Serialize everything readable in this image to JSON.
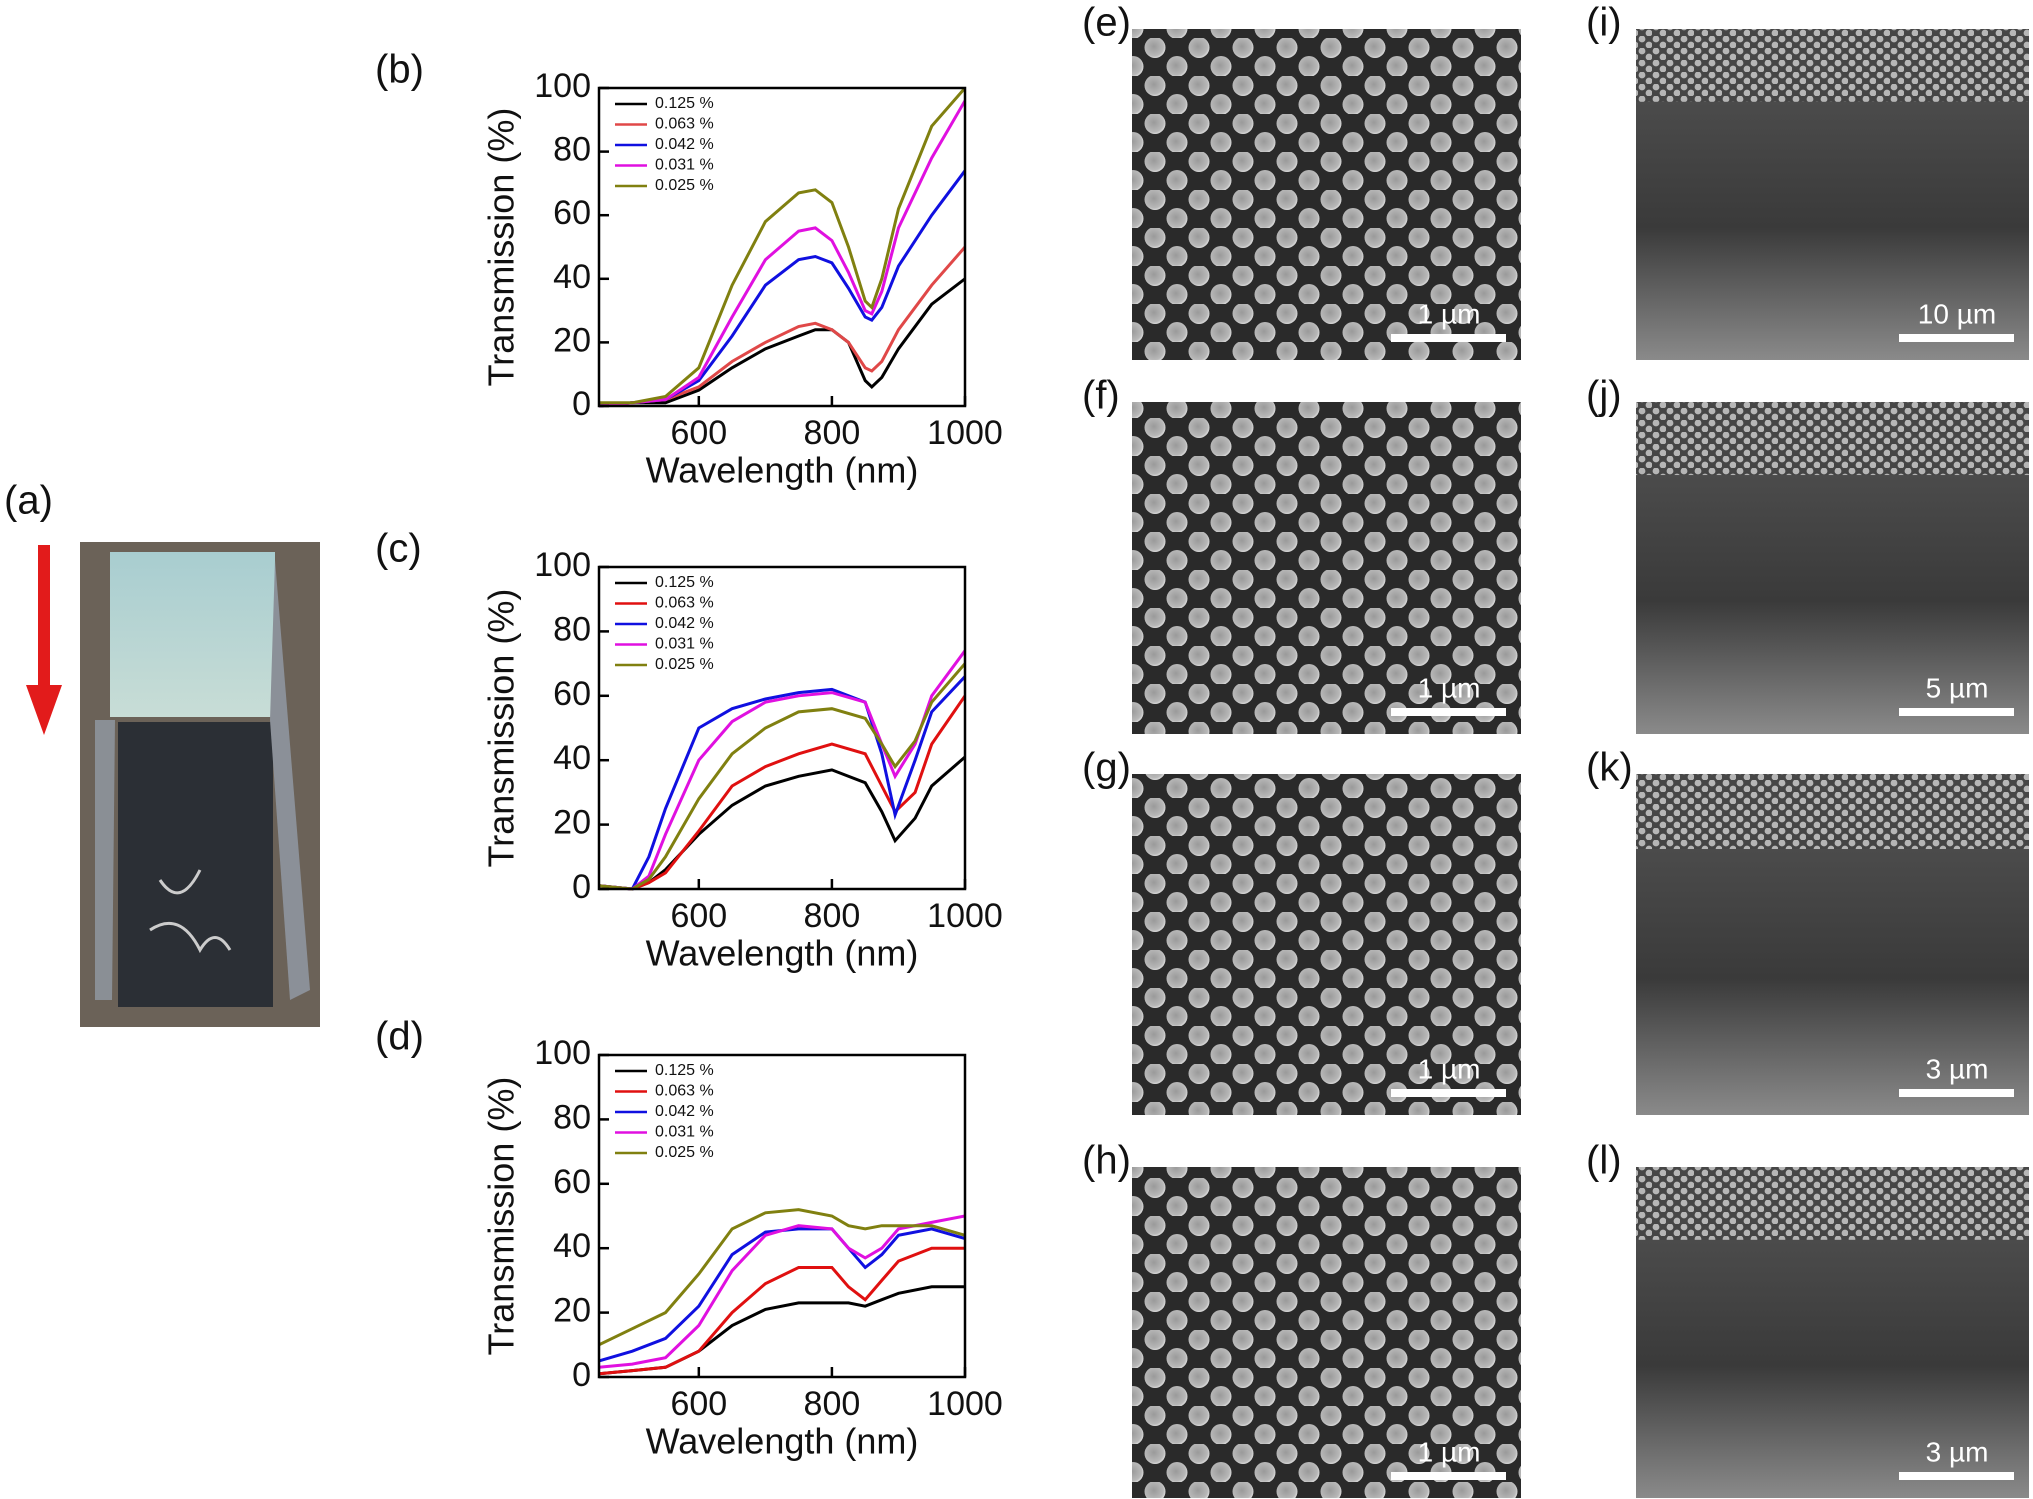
{
  "photo": {
    "label": "(a)"
  },
  "sem_images": [
    {
      "label": "(e)",
      "scale_bar": "1 µm"
    },
    {
      "label": "(f)",
      "scale_bar": "1 µm"
    },
    {
      "label": "(g)",
      "scale_bar": "1 µm"
    },
    {
      "label": "(h)",
      "scale_bar": "1 µm"
    },
    {
      "label": "(i)",
      "scale_bar": "10 µm"
    },
    {
      "label": "(j)",
      "scale_bar": "5 µm"
    },
    {
      "label": "(k)",
      "scale_bar": "3 µm"
    },
    {
      "label": "(l)",
      "scale_bar": "3 µm"
    }
  ],
  "chart_data": [
    {
      "type": "line",
      "label": "(b)",
      "xlabel": "Wavelength (nm)",
      "ylabel": "Transmission (%)",
      "xlim": [
        450,
        1000
      ],
      "ylim": [
        0,
        100
      ],
      "xticks": [
        600,
        800,
        1000
      ],
      "yticks": [
        0,
        20,
        40,
        60,
        80,
        100
      ],
      "legend": "upper left",
      "x": [
        450,
        500,
        550,
        600,
        650,
        700,
        750,
        775,
        800,
        825,
        850,
        860,
        875,
        900,
        950,
        1000
      ],
      "series": [
        {
          "name": "0.125 %",
          "color": "#000000",
          "values": [
            0,
            1,
            1,
            5,
            12,
            18,
            22,
            24,
            24,
            20,
            8,
            6,
            9,
            18,
            32,
            40
          ]
        },
        {
          "name": "0.063 %",
          "color": "#e04848",
          "values": [
            0,
            1,
            2,
            6,
            14,
            20,
            25,
            26,
            24,
            20,
            12,
            11,
            14,
            24,
            38,
            50
          ]
        },
        {
          "name": "0.042 %",
          "color": "#1010e0",
          "values": [
            0,
            1,
            2,
            8,
            22,
            38,
            46,
            47,
            45,
            37,
            28,
            27,
            31,
            44,
            60,
            74
          ]
        },
        {
          "name": "0.031 %",
          "color": "#e010e0",
          "values": [
            0,
            1,
            2,
            9,
            28,
            46,
            55,
            56,
            52,
            42,
            30,
            29,
            36,
            56,
            78,
            96
          ]
        },
        {
          "name": "0.025 %",
          "color": "#808010",
          "values": [
            1,
            1,
            3,
            12,
            38,
            58,
            67,
            68,
            64,
            50,
            33,
            31,
            40,
            62,
            88,
            100
          ]
        }
      ]
    },
    {
      "type": "line",
      "label": "(c)",
      "xlabel": "Wavelength (nm)",
      "ylabel": "Transmission (%)",
      "xlim": [
        450,
        1000
      ],
      "ylim": [
        0,
        100
      ],
      "xticks": [
        600,
        800,
        1000
      ],
      "yticks": [
        0,
        20,
        40,
        60,
        80,
        100
      ],
      "legend": "upper left",
      "x": [
        450,
        500,
        525,
        550,
        600,
        650,
        700,
        750,
        800,
        850,
        875,
        895,
        925,
        950,
        1000
      ],
      "series": [
        {
          "name": "0.125 %",
          "color": "#000000",
          "values": [
            1,
            0,
            2,
            6,
            17,
            26,
            32,
            35,
            37,
            33,
            24,
            15,
            22,
            32,
            41
          ]
        },
        {
          "name": "0.063 %",
          "color": "#e01010",
          "values": [
            1,
            0,
            2,
            5,
            18,
            32,
            38,
            42,
            45,
            42,
            32,
            24,
            30,
            45,
            60
          ]
        },
        {
          "name": "0.042 %",
          "color": "#1010e0",
          "values": [
            1,
            0,
            10,
            25,
            50,
            56,
            59,
            61,
            62,
            58,
            42,
            23,
            40,
            55,
            66
          ]
        },
        {
          "name": "0.031 %",
          "color": "#e010e0",
          "values": [
            1,
            0,
            4,
            17,
            40,
            52,
            58,
            60,
            61,
            58,
            45,
            35,
            45,
            60,
            74
          ]
        },
        {
          "name": "0.025 %",
          "color": "#808010",
          "values": [
            1,
            0,
            3,
            10,
            28,
            42,
            50,
            55,
            56,
            53,
            45,
            38,
            46,
            58,
            70
          ]
        }
      ]
    },
    {
      "type": "line",
      "label": "(d)",
      "xlabel": "Wavelength (nm)",
      "ylabel": "Transmission (%)",
      "xlim": [
        450,
        1000
      ],
      "ylim": [
        0,
        100
      ],
      "xticks": [
        600,
        800,
        1000
      ],
      "yticks": [
        0,
        20,
        40,
        60,
        80,
        100
      ],
      "legend": "upper left",
      "x": [
        450,
        500,
        550,
        600,
        650,
        700,
        750,
        800,
        825,
        850,
        875,
        900,
        950,
        1000
      ],
      "series": [
        {
          "name": "0.125 %",
          "color": "#000000",
          "values": [
            1,
            2,
            3,
            8,
            16,
            21,
            23,
            23,
            23,
            22,
            24,
            26,
            28,
            28
          ]
        },
        {
          "name": "0.063 %",
          "color": "#e01010",
          "values": [
            1,
            2,
            3,
            8,
            20,
            29,
            34,
            34,
            28,
            24,
            30,
            36,
            40,
            40
          ]
        },
        {
          "name": "0.042 %",
          "color": "#1010e0",
          "values": [
            5,
            8,
            12,
            22,
            38,
            45,
            46,
            46,
            40,
            34,
            38,
            44,
            46,
            43
          ]
        },
        {
          "name": "0.031 %",
          "color": "#e010e0",
          "values": [
            3,
            4,
            6,
            16,
            33,
            44,
            47,
            46,
            40,
            37,
            40,
            46,
            48,
            50
          ]
        },
        {
          "name": "0.025 %",
          "color": "#808010",
          "values": [
            10,
            15,
            20,
            32,
            46,
            51,
            52,
            50,
            47,
            46,
            47,
            47,
            47,
            44
          ]
        }
      ]
    }
  ]
}
